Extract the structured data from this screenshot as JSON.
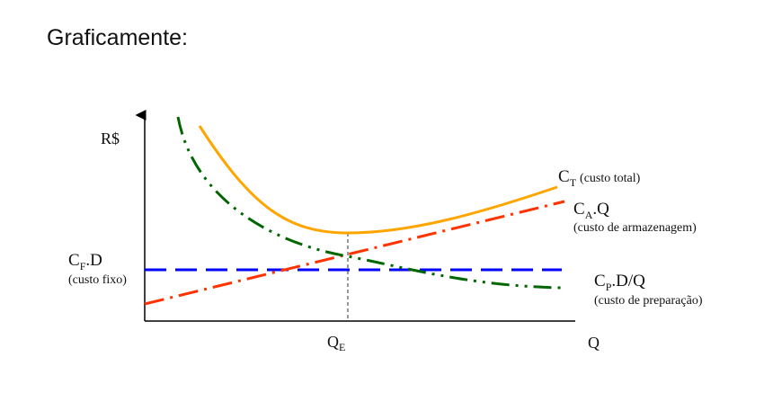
{
  "title": "Graficamente:",
  "diagram": {
    "y_axis_label": "R$",
    "x_axis_label": "Q",
    "optimum_label": {
      "main": "Q",
      "sub": "E"
    },
    "curves": [
      {
        "id": "total",
        "main": "C",
        "sub": "T",
        "rest": "",
        "desc": "(custo total)",
        "color": "#FFA500"
      },
      {
        "id": "armazenagem",
        "main": "C",
        "sub": "A",
        "rest": ".Q",
        "desc": "(custo de armazenagem)",
        "color": "#FF3300"
      },
      {
        "id": "preparacao",
        "main": "C",
        "sub": "P",
        "rest": ".D/Q",
        "desc": "(custo de preparação)",
        "color": "#006600"
      },
      {
        "id": "fixo",
        "main": "C",
        "sub": "F",
        "rest": ".D",
        "desc": "(custo fixo)",
        "color": "#0000FF"
      }
    ]
  }
}
